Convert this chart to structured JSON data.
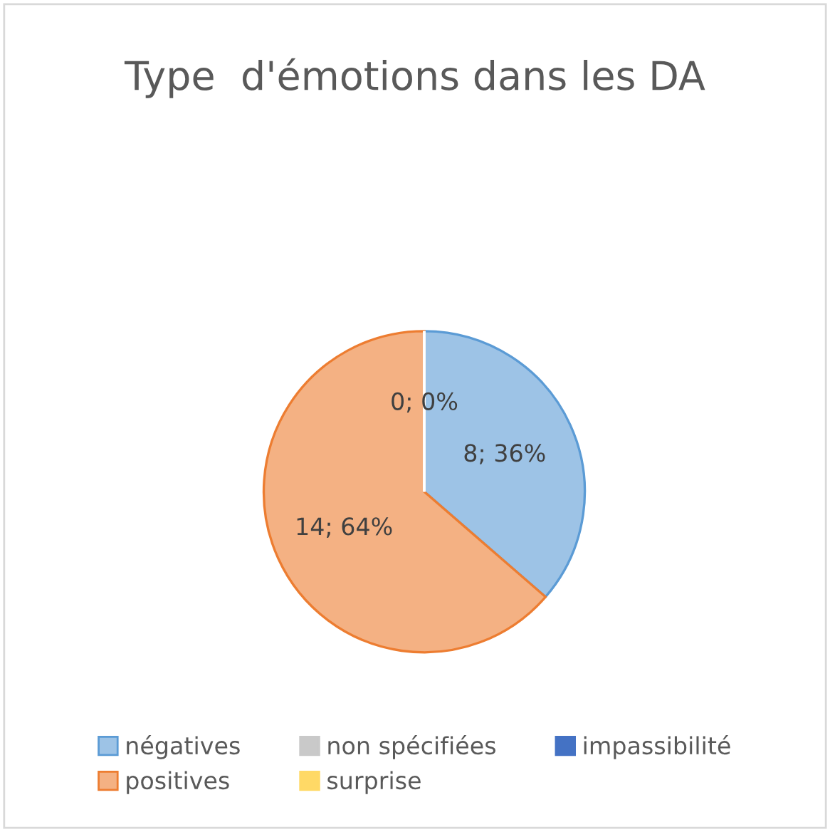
{
  "chart_data": {
    "type": "pie",
    "title": "Type  d'émotions dans les DA",
    "categories": [
      "négatives",
      "positives",
      "non spécifiées",
      "surprise",
      "impassibilité"
    ],
    "values": [
      8,
      14,
      0,
      0,
      0
    ],
    "colors": [
      "#9dc3e6",
      "#f4b183",
      "#c9c9c9",
      "#ffd966",
      "#4472c4"
    ],
    "value_labels": [
      "8; 36%",
      "14; 64%",
      "0; 0%",
      null,
      null
    ],
    "legend": "bottom"
  }
}
